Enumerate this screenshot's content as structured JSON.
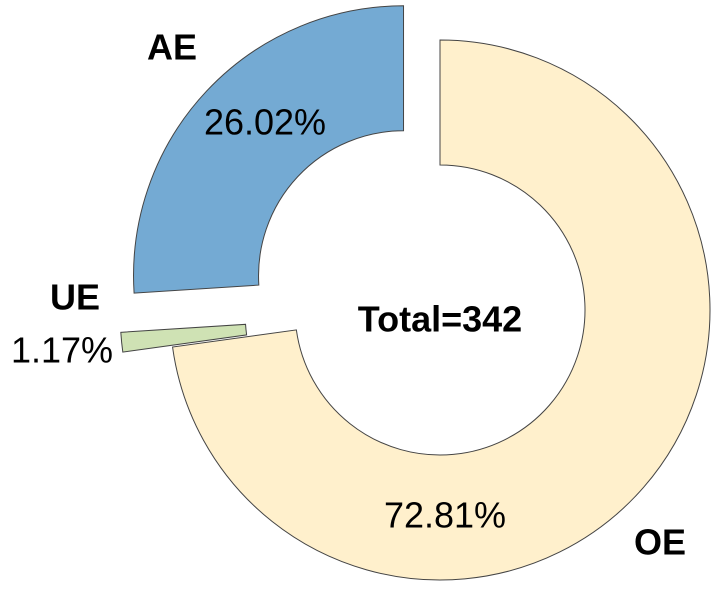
{
  "chart_data": {
    "type": "donut",
    "categories": [
      "OE",
      "UE",
      "AE"
    ],
    "values": [
      72.81,
      1.17,
      26.02
    ],
    "value_labels": [
      "72.81%",
      "1.17%",
      "26.02%"
    ],
    "colors": [
      "#fff0cc",
      "#cfe2b4",
      "#74aad3"
    ],
    "center_label": "Total=342"
  }
}
